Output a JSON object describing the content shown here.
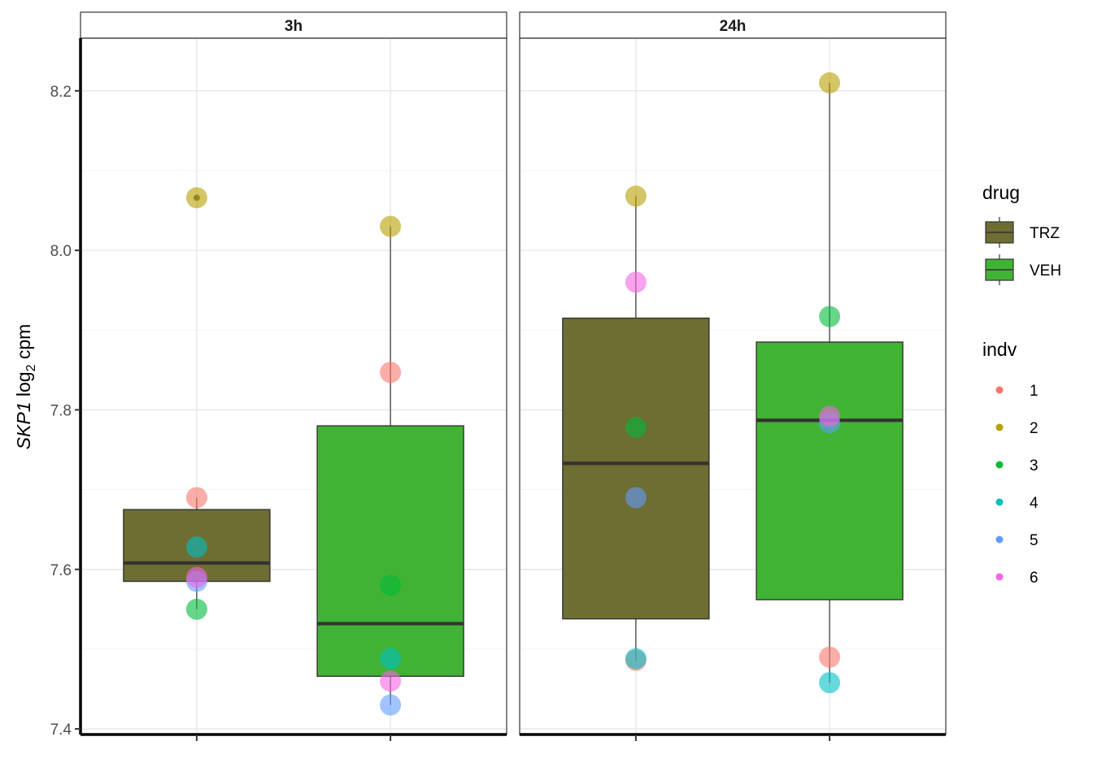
{
  "chart_data": {
    "type": "box",
    "ylabel": {
      "gene": "SKP1",
      "text_pre": "log",
      "subscript": "2",
      "text_post": "cpm"
    },
    "ylim": [
      7.393,
      8.266
    ],
    "y_ticks": [
      "7.4",
      "7.6",
      "7.8",
      "8.0",
      "8.2"
    ],
    "grid": true,
    "legend_position": "right",
    "panels": [
      {
        "label": "3h",
        "boxes": [
          {
            "drug": "TRZ",
            "q1": 7.585,
            "median": 7.608,
            "q3": 7.675,
            "whisker_low": 7.55,
            "whisker_high": 7.69,
            "outliers": [
              8.066
            ]
          },
          {
            "drug": "VEH",
            "q1": 7.466,
            "median": 7.532,
            "q3": 7.78,
            "whisker_low": 7.43,
            "whisker_high": 8.03,
            "outliers": []
          }
        ],
        "points": {
          "TRZ": [
            {
              "indv": "1",
              "y": 7.69
            },
            {
              "indv": "2",
              "y": 8.066
            },
            {
              "indv": "3",
              "y": 7.55
            },
            {
              "indv": "4",
              "y": 7.628
            },
            {
              "indv": "5",
              "y": 7.585
            },
            {
              "indv": "6",
              "y": 7.59
            }
          ],
          "VEH": [
            {
              "indv": "1",
              "y": 7.847
            },
            {
              "indv": "2",
              "y": 8.03
            },
            {
              "indv": "3",
              "y": 7.58
            },
            {
              "indv": "4",
              "y": 7.488
            },
            {
              "indv": "5",
              "y": 7.43
            },
            {
              "indv": "6",
              "y": 7.46
            }
          ]
        }
      },
      {
        "label": "24h",
        "boxes": [
          {
            "drug": "TRZ",
            "q1": 7.538,
            "median": 7.733,
            "q3": 7.915,
            "whisker_low": 7.485,
            "whisker_high": 8.068,
            "outliers": []
          },
          {
            "drug": "VEH",
            "q1": 7.562,
            "median": 7.787,
            "q3": 7.885,
            "whisker_low": 7.458,
            "whisker_high": 8.21,
            "outliers": []
          }
        ],
        "points": {
          "TRZ": [
            {
              "indv": "1",
              "y": 7.486
            },
            {
              "indv": "2",
              "y": 8.068
            },
            {
              "indv": "3",
              "y": 7.778
            },
            {
              "indv": "4",
              "y": 7.488
            },
            {
              "indv": "5",
              "y": 7.69
            },
            {
              "indv": "6",
              "y": 7.96
            }
          ],
          "VEH": [
            {
              "indv": "1",
              "y": 7.49
            },
            {
              "indv": "2",
              "y": 8.21
            },
            {
              "indv": "3",
              "y": 7.917
            },
            {
              "indv": "4",
              "y": 7.458
            },
            {
              "indv": "5",
              "y": 7.784
            },
            {
              "indv": "6",
              "y": 7.792
            }
          ]
        }
      }
    ],
    "legend_drug": {
      "title": "drug",
      "items": [
        {
          "label": "TRZ",
          "color": "#6e6d32"
        },
        {
          "label": "VEH",
          "color": "#41b334"
        }
      ]
    },
    "legend_indv": {
      "title": "indv",
      "items": [
        {
          "label": "1",
          "color": "#F8766D"
        },
        {
          "label": "2",
          "color": "#B79F00"
        },
        {
          "label": "3",
          "color": "#00BA38"
        },
        {
          "label": "4",
          "color": "#00BFC4"
        },
        {
          "label": "5",
          "color": "#619CFF"
        },
        {
          "label": "6",
          "color": "#F564E3"
        }
      ]
    }
  }
}
